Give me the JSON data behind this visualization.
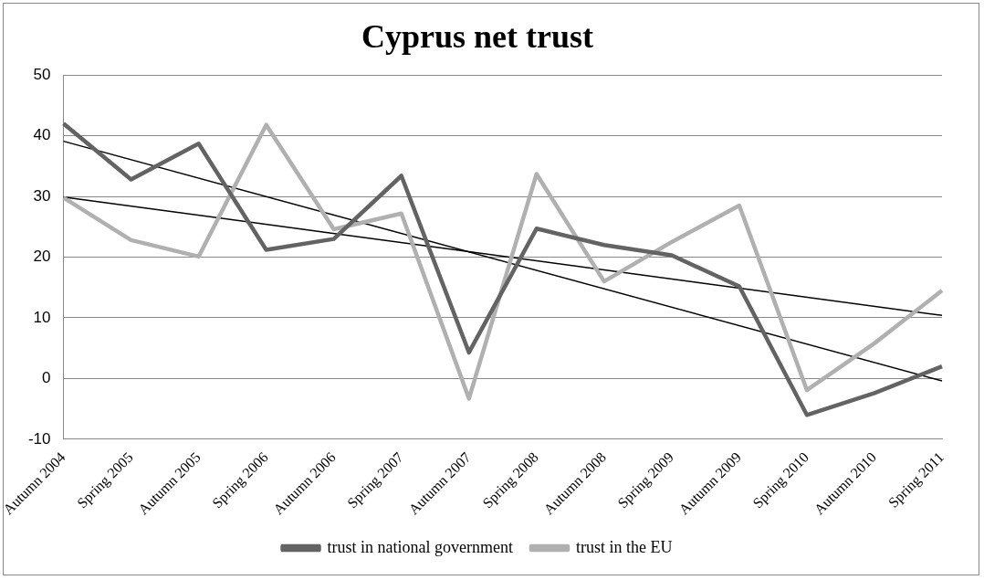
{
  "chart_data": {
    "type": "line",
    "title": "Cyprus net trust",
    "categories": [
      "Autumn 2004",
      "Spring 2005",
      "Autumn 2005",
      "Spring 2006",
      "Autumn 2006",
      "Spring 2007",
      "Autumn 2007",
      "Spring 2008",
      "Autumn 2008",
      "Spring 2009",
      "Autumn 2009",
      "Spring 2010",
      "Autumn 2010",
      "Spring 2011"
    ],
    "series": [
      {
        "name": "trust in national government",
        "color": "#636363",
        "values": [
          42,
          32.8,
          38.7,
          21.2,
          23,
          33.4,
          4.3,
          24.7,
          22,
          20.3,
          15.2,
          -6,
          -2.4,
          2
        ]
      },
      {
        "name": "trust in the EU",
        "color": "#b0b0b0",
        "values": [
          29.8,
          22.8,
          20.1,
          41.8,
          24.6,
          27.2,
          -3.3,
          33.7,
          16,
          22.5,
          28.5,
          -1.9,
          5.8,
          14.5
        ]
      },
      {
        "color": "#000000",
        "values": [
          39.1,
          null,
          null,
          null,
          null,
          null,
          null,
          null,
          null,
          null,
          null,
          null,
          null,
          -0.4
        ]
      },
      {
        "color": "#000000",
        "values": [
          29.9,
          null,
          null,
          null,
          null,
          null,
          null,
          null,
          null,
          null,
          null,
          null,
          null,
          10.4
        ]
      }
    ],
    "ylim": [
      -10,
      50
    ],
    "yticks": [
      -10,
      0,
      10,
      20,
      30,
      40,
      50
    ],
    "grid": "y",
    "legend": "bottom",
    "marker": "none",
    "line_style": "solid"
  }
}
